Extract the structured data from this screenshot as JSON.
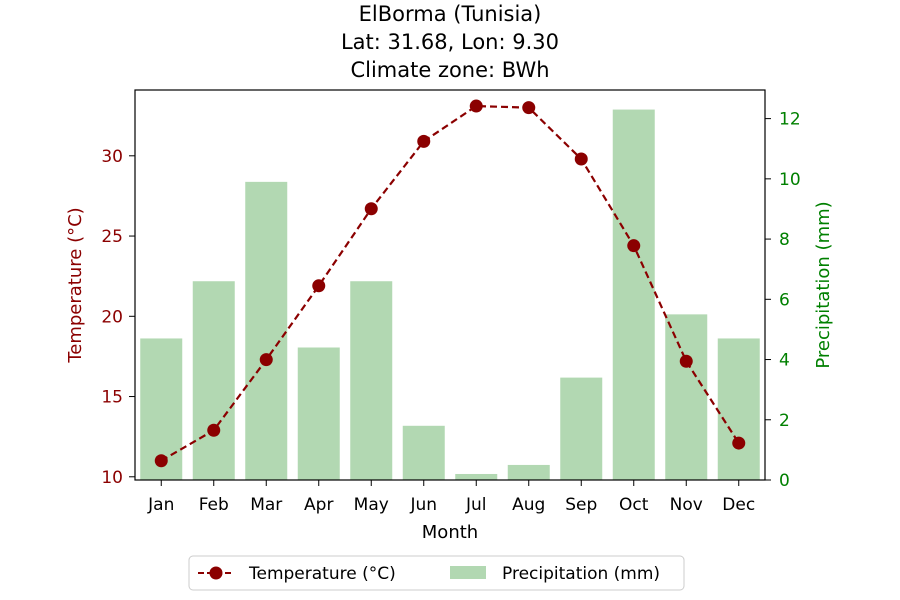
{
  "chart_data": {
    "type": "bar+line",
    "title_lines": [
      "ElBorma (Tunisia)",
      "Lat: 31.68, Lon: 9.30",
      "Climate zone: BWh"
    ],
    "xlabel": "Month",
    "ylabel_left": "Temperature (°C)",
    "ylabel_right": "Precipitation (mm)",
    "categories": [
      "Jan",
      "Feb",
      "Mar",
      "Apr",
      "May",
      "Jun",
      "Jul",
      "Aug",
      "Sep",
      "Oct",
      "Nov",
      "Dec"
    ],
    "ylim_left": [
      9.8,
      34.1
    ],
    "yticks_left": [
      10,
      15,
      20,
      25,
      30
    ],
    "ylim_right": [
      0,
      12.95
    ],
    "yticks_right": [
      0,
      2,
      4,
      6,
      8,
      10,
      12
    ],
    "series": [
      {
        "name": "Temperature (°C)",
        "kind": "line",
        "axis": "left",
        "color": "#8b0000",
        "values": [
          11.0,
          12.9,
          17.3,
          21.9,
          26.7,
          30.9,
          33.1,
          33.0,
          29.8,
          24.4,
          17.2,
          12.1
        ]
      },
      {
        "name": "Precipitation (mm)",
        "kind": "bar",
        "axis": "right",
        "color": "#b2d8b2",
        "values": [
          4.7,
          6.6,
          9.9,
          4.4,
          6.6,
          1.8,
          0.2,
          0.5,
          3.4,
          12.3,
          5.5,
          4.7
        ]
      }
    ],
    "legend_position": "bottom-center",
    "grid": false
  }
}
